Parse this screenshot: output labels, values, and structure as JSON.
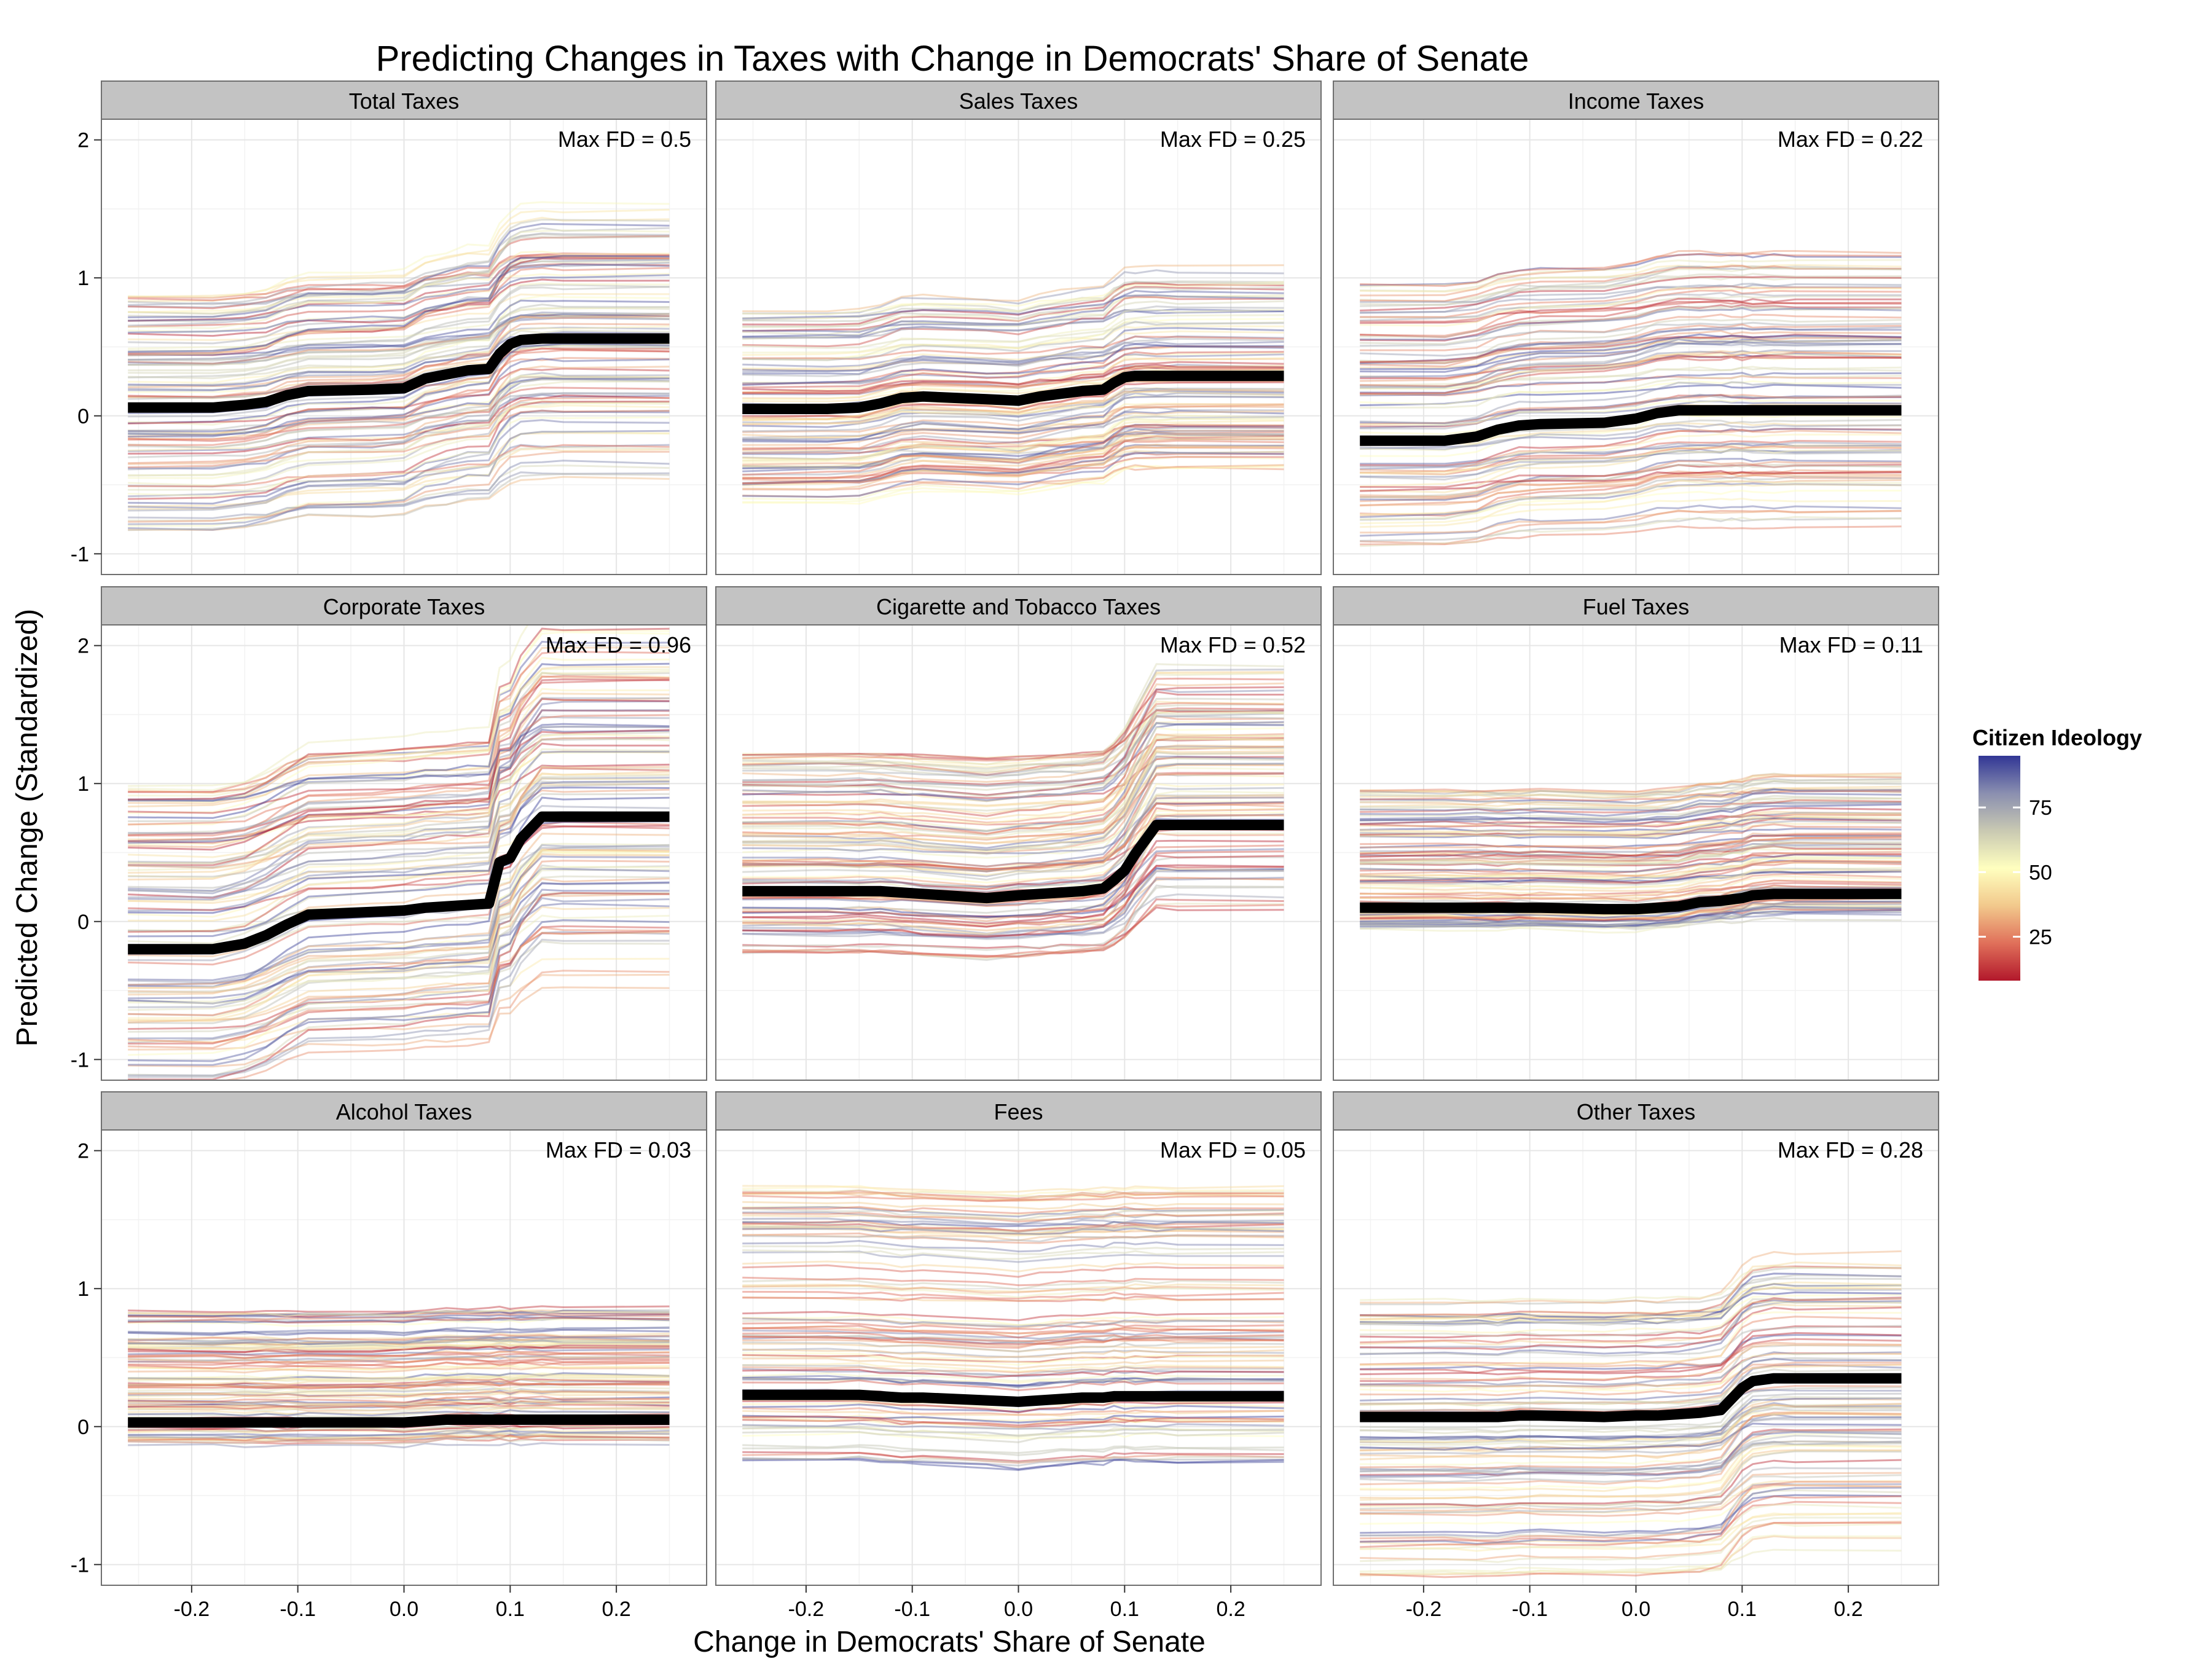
{
  "chart_data": {
    "type": "line",
    "title": "Predicting Changes in Taxes with Change in Democrats' Share of Senate",
    "xlabel": "Change in Democrats' Share of Senate",
    "ylabel": "Predicted Change (Standardized)",
    "xlim": [
      -0.285,
      0.285
    ],
    "ylim": [
      -1.15,
      2.15
    ],
    "xticks": [
      -0.2,
      -0.1,
      0.0,
      0.1,
      0.2
    ],
    "xtick_labels": [
      "-0.2",
      "-0.1",
      "0.0",
      "0.1",
      "0.2"
    ],
    "yticks": [
      -1,
      0,
      1,
      2
    ],
    "ytick_labels": [
      "-1",
      "0",
      "1",
      "2"
    ],
    "grid": true,
    "legend": {
      "title": "Citizen Ideology",
      "placement": "right",
      "ticks": [
        25,
        50,
        75
      ],
      "tick_labels": [
        "25",
        "50",
        "75"
      ],
      "range": [
        8,
        95
      ],
      "colors": [
        "#b2182b",
        "#e0705a",
        "#f2c98c",
        "#ffffbf",
        "#c9c9b2",
        "#8a8fb0",
        "#313695"
      ]
    },
    "x": [
      -0.26,
      -0.18,
      -0.15,
      -0.13,
      -0.11,
      -0.09,
      -0.03,
      0.0,
      0.02,
      0.04,
      0.06,
      0.08,
      0.09,
      0.1,
      0.11,
      0.13,
      0.15,
      0.25
    ],
    "panels": [
      {
        "name": "Total Taxes",
        "annotation": "Max FD = 0.5",
        "average": [
          0.06,
          0.06,
          0.08,
          0.1,
          0.15,
          0.18,
          0.19,
          0.2,
          0.27,
          0.3,
          0.33,
          0.34,
          0.45,
          0.52,
          0.55,
          0.56,
          0.56,
          0.56
        ],
        "line_band": [
          -0.58,
          1.27
        ]
      },
      {
        "name": "Sales Taxes",
        "annotation": "Max FD = 0.25",
        "average": [
          0.05,
          0.05,
          0.06,
          0.09,
          0.13,
          0.14,
          0.12,
          0.11,
          0.14,
          0.16,
          0.18,
          0.19,
          0.24,
          0.28,
          0.29,
          0.29,
          0.29,
          0.29
        ],
        "line_band": [
          -0.55,
          1.0
        ]
      },
      {
        "name": "Income Taxes",
        "annotation": "Max FD = 0.22",
        "average": [
          -0.18,
          -0.18,
          -0.15,
          -0.1,
          -0.07,
          -0.06,
          -0.05,
          -0.02,
          0.02,
          0.04,
          0.04,
          0.04,
          0.04,
          0.04,
          0.04,
          0.04,
          0.04,
          0.04
        ],
        "line_band": [
          -0.83,
          1.22
        ]
      },
      {
        "name": "Corporate Taxes",
        "annotation": "Max FD = 0.96",
        "average": [
          -0.2,
          -0.2,
          -0.16,
          -0.1,
          -0.02,
          0.05,
          0.07,
          0.08,
          0.1,
          0.11,
          0.12,
          0.13,
          0.43,
          0.46,
          0.6,
          0.76,
          0.76,
          0.76
        ],
        "line_band": [
          -0.7,
          1.7
        ]
      },
      {
        "name": "Cigarette and Tobacco Taxes",
        "annotation": "Max FD = 0.52",
        "average": [
          0.22,
          0.22,
          0.22,
          0.22,
          0.21,
          0.2,
          0.17,
          0.19,
          0.2,
          0.21,
          0.22,
          0.24,
          0.3,
          0.37,
          0.49,
          0.7,
          0.7,
          0.7
        ],
        "line_band": [
          0.0,
          1.63
        ]
      },
      {
        "name": "Fuel Taxes",
        "annotation": "Max FD = 0.11",
        "average": [
          0.1,
          0.1,
          0.1,
          0.1,
          0.1,
          0.1,
          0.09,
          0.09,
          0.1,
          0.11,
          0.14,
          0.15,
          0.16,
          0.17,
          0.19,
          0.2,
          0.2,
          0.2
        ],
        "line_band": [
          -0.05,
          1.1
        ]
      },
      {
        "name": "Alcohol Taxes",
        "annotation": "Max FD = 0.03",
        "average": [
          0.03,
          0.03,
          0.03,
          0.03,
          0.03,
          0.03,
          0.03,
          0.03,
          0.04,
          0.05,
          0.05,
          0.05,
          0.05,
          0.05,
          0.05,
          0.05,
          0.05,
          0.05
        ],
        "line_band": [
          -0.13,
          0.93
        ]
      },
      {
        "name": "Fees",
        "annotation": "Max FD = 0.05",
        "average": [
          0.23,
          0.23,
          0.23,
          0.22,
          0.21,
          0.21,
          0.19,
          0.18,
          0.19,
          0.2,
          0.21,
          0.21,
          0.22,
          0.22,
          0.22,
          0.22,
          0.22,
          0.22
        ],
        "line_band": [
          -0.25,
          1.92
        ]
      },
      {
        "name": "Other Taxes",
        "annotation": "Max FD = 0.28",
        "average": [
          0.07,
          0.07,
          0.07,
          0.07,
          0.08,
          0.08,
          0.07,
          0.08,
          0.08,
          0.09,
          0.1,
          0.12,
          0.2,
          0.28,
          0.33,
          0.35,
          0.35,
          0.35
        ],
        "line_band": [
          -0.98,
          1.25
        ]
      }
    ]
  }
}
